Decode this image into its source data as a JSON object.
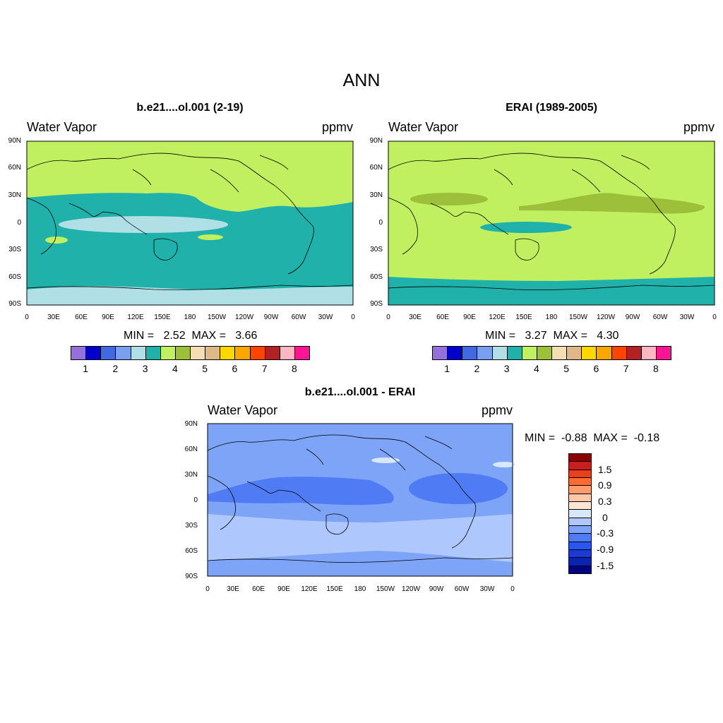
{
  "figure": {
    "title": "ANN"
  },
  "panels": [
    {
      "id": "model",
      "title": "b.e21....ol.001 (2-19)",
      "left_label": "Water Vapor",
      "right_label": "ppmv",
      "min_max": "MIN =   2.52  MAX =   3.66"
    },
    {
      "id": "obs",
      "title": "ERAI (1989-2005)",
      "left_label": "Water Vapor",
      "right_label": "ppmv",
      "min_max": "MIN =   3.27  MAX =   4.30"
    },
    {
      "id": "diff",
      "title": "b.e21....ol.001 - ERAI",
      "left_label": "Water Vapor",
      "right_label": "ppmv",
      "min_max": "MIN =  -0.88  MAX =  -0.18"
    }
  ],
  "axes": {
    "lat_ticks": [
      "90N",
      "60N",
      "30N",
      "0",
      "30S",
      "60S",
      "90S"
    ],
    "lon_ticks": [
      "0",
      "30E",
      "60E",
      "90E",
      "120E",
      "150E",
      "180",
      "150W",
      "120W",
      "90W",
      "60W",
      "30W",
      "0"
    ]
  },
  "colorbar_abs": {
    "labels": [
      "1",
      "2",
      "3",
      "4",
      "5",
      "6",
      "7",
      "8"
    ],
    "colors": [
      "#9370db",
      "#0000cd",
      "#4169e1",
      "#7b9ff0",
      "#b0e0e6",
      "#20b2aa",
      "#c0f060",
      "#9cc03a",
      "#f5deb3",
      "#deb887",
      "#ffd700",
      "#ffa500",
      "#ff4500",
      "#b22222",
      "#ffb6c1",
      "#ff1493"
    ]
  },
  "colorbar_diff": {
    "labels": [
      "1.5",
      "0.9",
      "0.3",
      "0",
      "-0.3",
      "-0.9",
      "-1.5"
    ],
    "colors": [
      "#8b0000",
      "#c81e1e",
      "#e8401e",
      "#ff6a32",
      "#ff9c6e",
      "#ffc8a8",
      "#fde6d4",
      "#d8e8fb",
      "#aec7fd",
      "#7ea4f8",
      "#4f7cf5",
      "#2a55ee",
      "#1c3bd6",
      "#0a24b0",
      "#000080"
    ]
  },
  "map_fills": {
    "model": {
      "base": "#20b2aa",
      "dry": "#c0f060",
      "moist": "#b0e0e6"
    },
    "obs": {
      "base": "#c0f060",
      "moist": "#9cc03a",
      "polar": "#20b2aa"
    },
    "diff": {
      "base": "#7ea4f8",
      "light": "#aec7fd",
      "dark": "#4f7cf5",
      "pale": "#d8e8fb"
    }
  }
}
